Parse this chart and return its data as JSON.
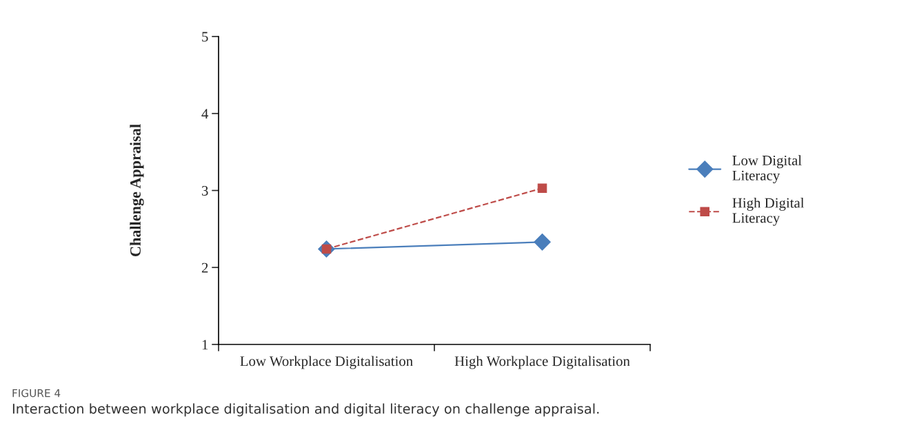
{
  "chart_data": {
    "type": "line",
    "ylabel": "Challenge Appraisal",
    "categories": [
      "Low Workplace Digitalisation",
      "High Workplace Digitalisation"
    ],
    "series": [
      {
        "name": "Low Digital Literacy",
        "color": "#4a7ebb",
        "values": [
          2.24,
          2.33
        ],
        "marker": "diamond",
        "line_style": "solid"
      },
      {
        "name": "High Digital Literacy",
        "color": "#be4b48",
        "values": [
          2.24,
          3.03
        ],
        "marker": "square",
        "line_style": "dashed"
      }
    ],
    "ylim": [
      1,
      5
    ],
    "yticks": [
      1,
      2,
      3,
      4,
      5
    ],
    "grid": false,
    "legend": "right",
    "annotations": [
      "FIGURE 4",
      "Interaction between workplace digitalisation and digital literacy on challenge appraisal."
    ]
  }
}
